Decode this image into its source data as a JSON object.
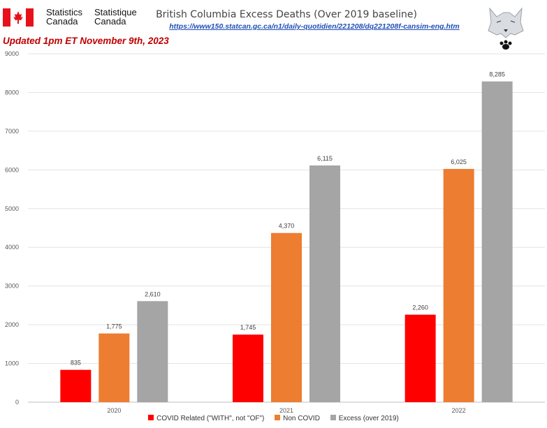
{
  "header": {
    "org_en_1": "Statistics",
    "org_en_2": "Canada",
    "org_fr_1": "Statistique",
    "org_fr_2": "Canada",
    "title": "British Columbia Excess Deaths (Over 2019 baseline)",
    "link": "https://www150.statcan.gc.ca/n1/daily-quotidien/221208/dq221208f-cansim-eng.htm",
    "updated": "Updated 1pm ET November 9th, 2023"
  },
  "colors": {
    "flag_red": "#e8101a",
    "link": "#1f4fb5",
    "updated": "#c00000"
  },
  "chart_data": {
    "type": "bar",
    "categories": [
      "2020",
      "2021",
      "2022"
    ],
    "series": [
      {
        "name": "COVID Related (\"WITH\", not \"OF\")",
        "color": "#ff0000",
        "values": [
          835,
          1745,
          2260
        ],
        "labels": [
          "835",
          "1,745",
          "2,260"
        ]
      },
      {
        "name": "Non COVID",
        "color": "#ed7d31",
        "values": [
          1775,
          4370,
          6025
        ],
        "labels": [
          "1,775",
          "4,370",
          "6,025"
        ]
      },
      {
        "name": "Excess (over 2019)",
        "color": "#a5a5a5",
        "values": [
          2610,
          6115,
          8285
        ],
        "labels": [
          "2,610",
          "6,115",
          "8,285"
        ]
      }
    ],
    "ylim": [
      0,
      9000
    ],
    "yticks": [
      0,
      1000,
      2000,
      3000,
      4000,
      5000,
      6000,
      7000,
      8000,
      9000
    ],
    "grid": true,
    "legend": "bottom"
  }
}
